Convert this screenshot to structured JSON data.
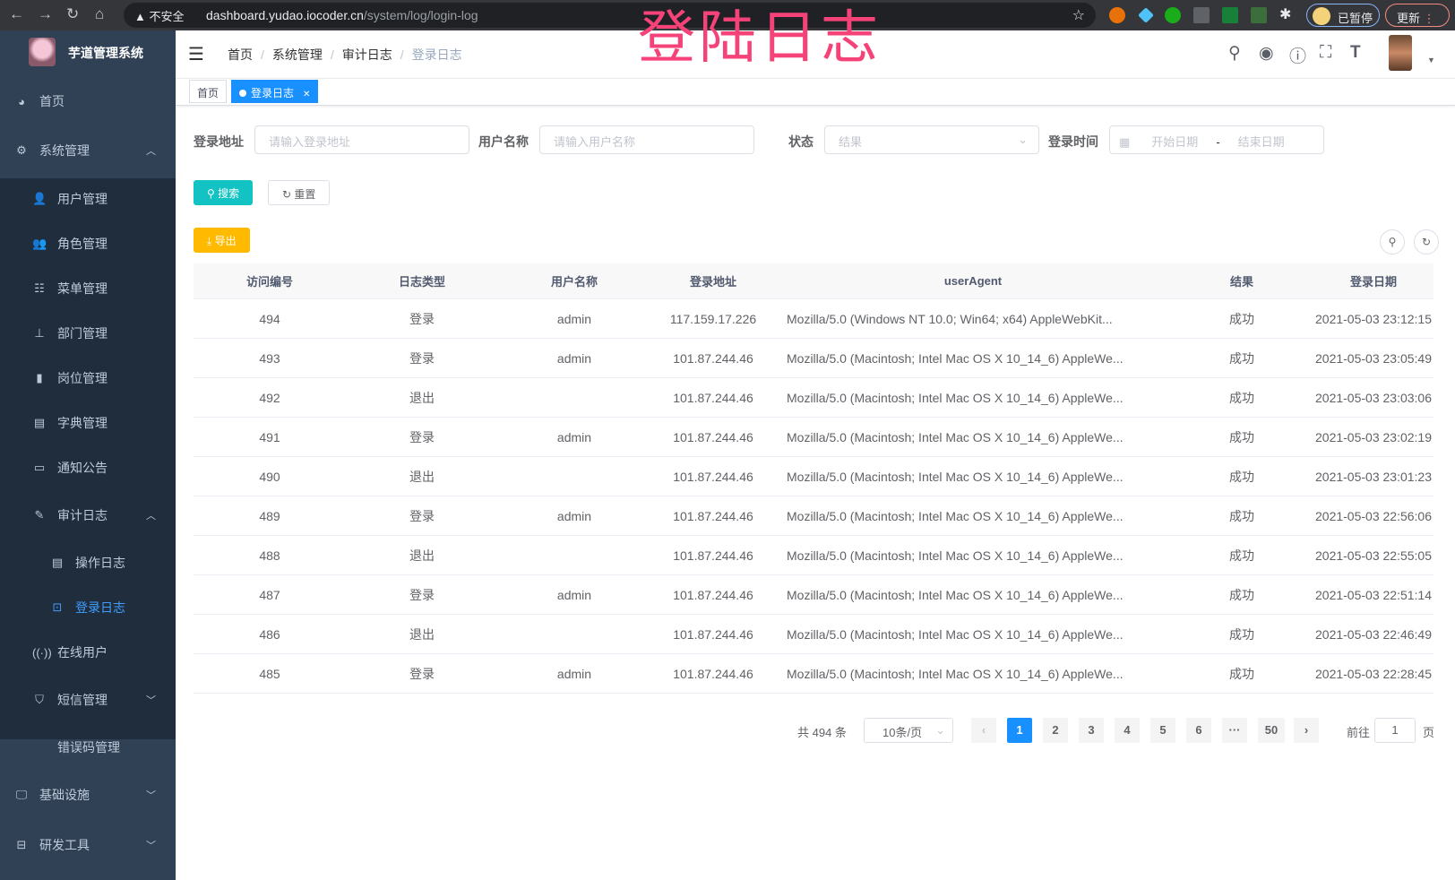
{
  "browser": {
    "security": "不安全",
    "url_host": "dashboard.yudao.iocoder.cn",
    "url_path": "/system/log/login-log",
    "paused": "已暂停",
    "update": "更新"
  },
  "overlay_title": "登陆日志",
  "sidebar": {
    "title": "芋道管理系统",
    "items": [
      {
        "label": "首页",
        "icon": "dashboard-icon",
        "level": 0
      },
      {
        "label": "系统管理",
        "icon": "gear-icon",
        "level": 0,
        "expanded": true
      },
      {
        "label": "用户管理",
        "icon": "user-icon",
        "level": 1
      },
      {
        "label": "角色管理",
        "icon": "peoples-icon",
        "level": 1
      },
      {
        "label": "菜单管理",
        "icon": "tree-table-icon",
        "level": 1
      },
      {
        "label": "部门管理",
        "icon": "tree-icon",
        "level": 1
      },
      {
        "label": "岗位管理",
        "icon": "post-icon",
        "level": 1
      },
      {
        "label": "字典管理",
        "icon": "dict-icon",
        "level": 1
      },
      {
        "label": "通知公告",
        "icon": "message-icon",
        "level": 1
      },
      {
        "label": "审计日志",
        "icon": "log-icon",
        "level": 1,
        "expanded": true
      },
      {
        "label": "操作日志",
        "icon": "form-icon",
        "level": 2
      },
      {
        "label": "登录日志",
        "icon": "logininfor-icon",
        "level": 2,
        "active": true
      },
      {
        "label": "在线用户",
        "icon": "online-icon",
        "level": 1
      },
      {
        "label": "短信管理",
        "icon": "shield-icon",
        "level": 1,
        "expanded": false
      },
      {
        "label": "错误码管理",
        "icon": "code-icon",
        "level": 1
      },
      {
        "label": "基础设施",
        "icon": "monitor-icon",
        "level": 0,
        "expanded": false
      },
      {
        "label": "研发工具",
        "icon": "tool-icon",
        "level": 0,
        "expanded": false
      }
    ]
  },
  "breadcrumb": [
    "首页",
    "系统管理",
    "审计日志",
    "登录日志"
  ],
  "tags": [
    {
      "label": "首页"
    },
    {
      "label": "登录日志",
      "active": true
    }
  ],
  "search": {
    "ip_label": "登录地址",
    "ip_placeholder": "请输入登录地址",
    "user_label": "用户名称",
    "user_placeholder": "请输入用户名称",
    "status_label": "状态",
    "status_placeholder": "结果",
    "time_label": "登录时间",
    "start_placeholder": "开始日期",
    "range_sep": "-",
    "end_placeholder": "结束日期",
    "search_btn": "搜索",
    "reset_btn": "重置",
    "export_btn": "导出"
  },
  "colors": {
    "sidebar": "#304156",
    "active": "#409eff",
    "search": "#13c2c2",
    "export": "#ffba00",
    "primary": "#1890ff"
  },
  "table": {
    "headers": [
      "访问编号",
      "日志类型",
      "用户名称",
      "登录地址",
      "userAgent",
      "结果",
      "登录日期"
    ],
    "rows": [
      [
        "494",
        "登录",
        "admin",
        "117.159.17.226",
        "Mozilla/5.0 (Windows NT 10.0; Win64; x64) AppleWebKit...",
        "成功",
        "2021-05-03 23:12:15"
      ],
      [
        "493",
        "登录",
        "admin",
        "101.87.244.46",
        "Mozilla/5.0 (Macintosh; Intel Mac OS X 10_14_6) AppleWe...",
        "成功",
        "2021-05-03 23:05:49"
      ],
      [
        "492",
        "退出",
        "",
        "101.87.244.46",
        "Mozilla/5.0 (Macintosh; Intel Mac OS X 10_14_6) AppleWe...",
        "成功",
        "2021-05-03 23:03:06"
      ],
      [
        "491",
        "登录",
        "admin",
        "101.87.244.46",
        "Mozilla/5.0 (Macintosh; Intel Mac OS X 10_14_6) AppleWe...",
        "成功",
        "2021-05-03 23:02:19"
      ],
      [
        "490",
        "退出",
        "",
        "101.87.244.46",
        "Mozilla/5.0 (Macintosh; Intel Mac OS X 10_14_6) AppleWe...",
        "成功",
        "2021-05-03 23:01:23"
      ],
      [
        "489",
        "登录",
        "admin",
        "101.87.244.46",
        "Mozilla/5.0 (Macintosh; Intel Mac OS X 10_14_6) AppleWe...",
        "成功",
        "2021-05-03 22:56:06"
      ],
      [
        "488",
        "退出",
        "",
        "101.87.244.46",
        "Mozilla/5.0 (Macintosh; Intel Mac OS X 10_14_6) AppleWe...",
        "成功",
        "2021-05-03 22:55:05"
      ],
      [
        "487",
        "登录",
        "admin",
        "101.87.244.46",
        "Mozilla/5.0 (Macintosh; Intel Mac OS X 10_14_6) AppleWe...",
        "成功",
        "2021-05-03 22:51:14"
      ],
      [
        "486",
        "退出",
        "",
        "101.87.244.46",
        "Mozilla/5.0 (Macintosh; Intel Mac OS X 10_14_6) AppleWe...",
        "成功",
        "2021-05-03 22:46:49"
      ],
      [
        "485",
        "登录",
        "admin",
        "101.87.244.46",
        "Mozilla/5.0 (Macintosh; Intel Mac OS X 10_14_6) AppleWe...",
        "成功",
        "2021-05-03 22:28:45"
      ]
    ]
  },
  "pagination": {
    "total": "共 494 条",
    "page_size": "10条/页",
    "pages": [
      "1",
      "2",
      "3",
      "4",
      "5",
      "6",
      "···",
      "50"
    ],
    "current": "1",
    "goto_label": "前往",
    "goto_value": "1",
    "goto_suffix": "页"
  }
}
